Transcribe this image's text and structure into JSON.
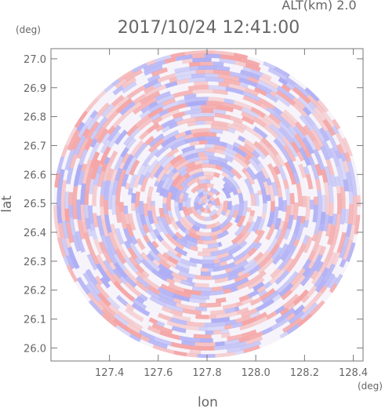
{
  "chart_data": {
    "type": "radar-field",
    "title": "2017/10/24 12:41:00",
    "subtitle": "ALT(km) 2.0",
    "x_label": "lon",
    "y_label": "lat",
    "x_unit": "(deg)",
    "y_unit": "(deg)",
    "xlim": [
      127.16,
      128.44
    ],
    "ylim": [
      25.955,
      27.035
    ],
    "xticks": [
      127.4,
      127.6,
      127.8,
      {
        "value": 128.0,
        "label": "128.0"
      },
      128.2,
      128.4
    ],
    "yticks": [
      {
        "value": 26.0,
        "label": "26.0"
      },
      26.1,
      26.2,
      26.3,
      26.4,
      26.5,
      26.6,
      26.7,
      26.8,
      26.9,
      {
        "value": 27.0,
        "label": "27.0"
      }
    ],
    "colors": [
      "#f4a0a0",
      "#a8a8f4"
    ]
  }
}
